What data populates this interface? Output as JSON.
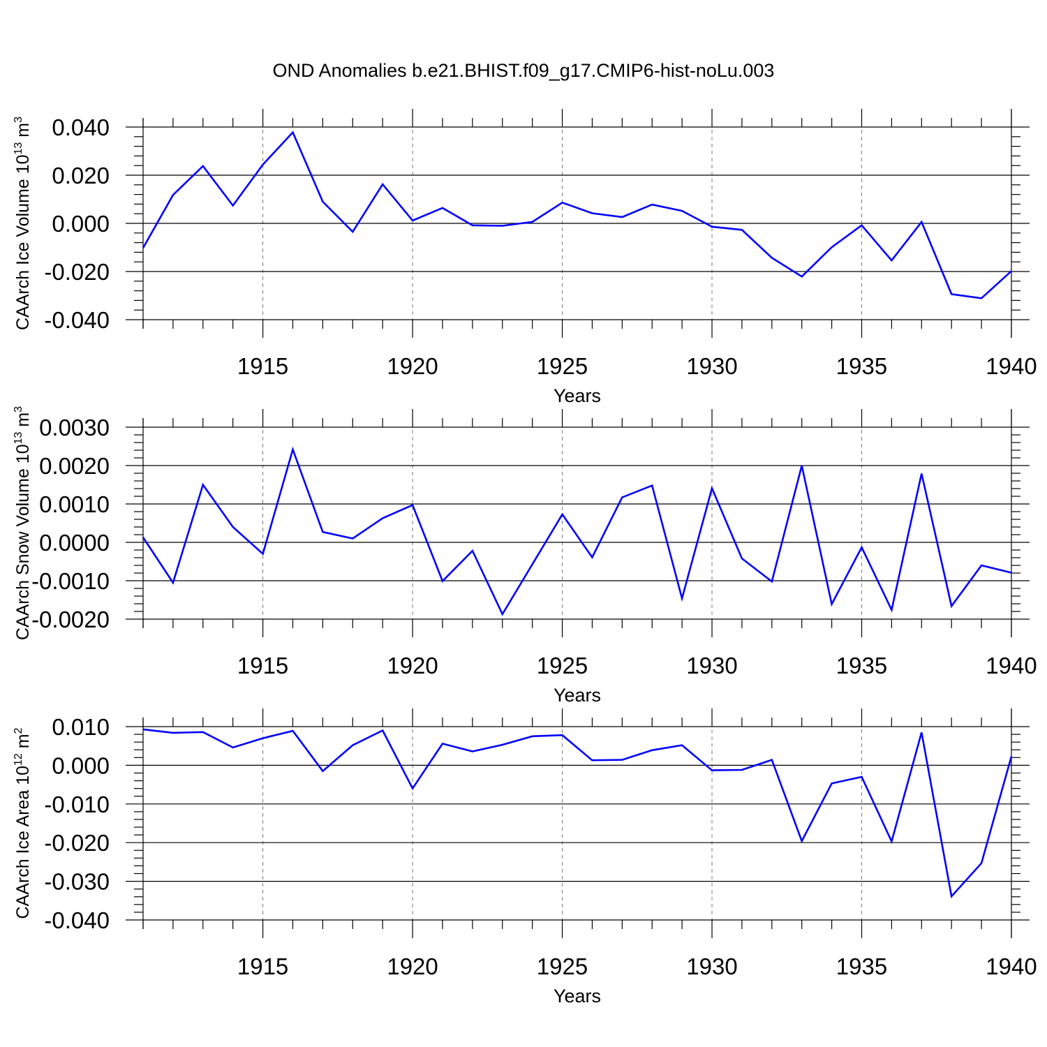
{
  "title": "OND Anomalies b.e21.BHIST.f09_g17.CMIP6-hist-noLu.003",
  "colors": {
    "line": "#0000ff",
    "axis": "#000000",
    "grid": "#777777"
  },
  "chart_data": [
    {
      "type": "line",
      "title": "",
      "xlabel": "Years",
      "ylabel_main": "CAArch Ice Volume 10",
      "ylabel_exp": "13",
      "ylabel_unit": " m",
      "ylabel_unit_exp": "3",
      "xlim": [
        1911,
        1940
      ],
      "ylim": [
        -0.04,
        0.04
      ],
      "xticks": [
        1915,
        1920,
        1925,
        1930,
        1935,
        1940
      ],
      "xtick_labels": [
        "1915",
        "1920",
        "1925",
        "1930",
        "1935",
        "1940"
      ],
      "yticks": [
        -0.04,
        -0.02,
        0.0,
        0.02,
        0.04
      ],
      "ytick_labels": [
        "-0.040",
        "-0.020",
        "0.000",
        "0.020",
        "0.040"
      ],
      "grid": "vertical dashed at labeled years",
      "x": [
        1911,
        1912,
        1913,
        1914,
        1915,
        1916,
        1917,
        1918,
        1919,
        1920,
        1921,
        1922,
        1923,
        1924,
        1925,
        1926,
        1927,
        1928,
        1929,
        1930,
        1931,
        1932,
        1933,
        1934,
        1935,
        1936,
        1937,
        1938,
        1939,
        1940
      ],
      "values": [
        -0.0102,
        0.0118,
        0.0238,
        0.0074,
        0.0244,
        0.0378,
        0.009,
        -0.0035,
        0.0162,
        0.0012,
        0.0064,
        -0.0008,
        -0.001,
        0.0006,
        0.0086,
        0.0042,
        0.0026,
        0.0078,
        0.0052,
        -0.0014,
        -0.0027,
        -0.0143,
        -0.0221,
        -0.0099,
        -0.0008,
        -0.0154,
        0.0006,
        -0.0294,
        -0.0311,
        -0.0198
      ]
    },
    {
      "type": "line",
      "title": "",
      "xlabel": "Years",
      "ylabel_main": "CAArch Snow Volume 10",
      "ylabel_exp": "13",
      "ylabel_unit": " m",
      "ylabel_unit_exp": "3",
      "xlim": [
        1911,
        1940
      ],
      "ylim": [
        -0.002,
        0.003
      ],
      "xticks": [
        1915,
        1920,
        1925,
        1930,
        1935,
        1940
      ],
      "xtick_labels": [
        "1915",
        "1920",
        "1925",
        "1930",
        "1935",
        "1940"
      ],
      "yticks": [
        -0.002,
        -0.001,
        0.0,
        0.001,
        0.002,
        0.003
      ],
      "ytick_labels": [
        "-0.0020",
        "-0.0010",
        "0.0000",
        "0.0010",
        "0.0020",
        "0.0030"
      ],
      "grid": "vertical dashed at labeled years",
      "x": [
        1911,
        1912,
        1913,
        1914,
        1915,
        1916,
        1917,
        1918,
        1919,
        1920,
        1921,
        1922,
        1923,
        1924,
        1925,
        1926,
        1927,
        1928,
        1929,
        1930,
        1931,
        1932,
        1933,
        1934,
        1935,
        1936,
        1937,
        1938,
        1939,
        1940
      ],
      "values": [
        0.00013,
        -0.00105,
        0.0015,
        0.0004,
        -0.0003,
        0.00242,
        0.00027,
        0.0001,
        0.00063,
        0.00097,
        -0.00101,
        -0.00022,
        -0.00187,
        -0.00057,
        0.00073,
        -0.00039,
        0.00117,
        0.00148,
        -0.00146,
        0.00141,
        -0.00042,
        -0.00102,
        0.002,
        -0.00161,
        -0.00013,
        -0.00176,
        0.00179,
        -0.00166,
        -0.0006,
        -0.00079
      ]
    },
    {
      "type": "line",
      "title": "",
      "xlabel": "Years",
      "ylabel_main": "CAArch Ice Area 10",
      "ylabel_exp": "12",
      "ylabel_unit": " m",
      "ylabel_unit_exp": "2",
      "xlim": [
        1911,
        1940
      ],
      "ylim": [
        -0.04,
        0.01
      ],
      "xticks": [
        1915,
        1920,
        1925,
        1930,
        1935,
        1940
      ],
      "xtick_labels": [
        "1915",
        "1920",
        "1925",
        "1930",
        "1935",
        "1940"
      ],
      "yticks": [
        -0.04,
        -0.03,
        -0.02,
        -0.01,
        0.0,
        0.01
      ],
      "ytick_labels": [
        "-0.040",
        "-0.030",
        "-0.020",
        "-0.010",
        "0.000",
        "0.010"
      ],
      "grid": "vertical dashed at labeled years",
      "x": [
        1911,
        1912,
        1913,
        1914,
        1915,
        1916,
        1917,
        1918,
        1919,
        1920,
        1921,
        1922,
        1923,
        1924,
        1925,
        1926,
        1927,
        1928,
        1929,
        1930,
        1931,
        1932,
        1933,
        1934,
        1935,
        1936,
        1937,
        1938,
        1939,
        1940
      ],
      "values": [
        0.0093,
        0.0084,
        0.0086,
        0.0046,
        0.007,
        0.0089,
        -0.0015,
        0.0052,
        0.009,
        -0.006,
        0.0056,
        0.0036,
        0.0053,
        0.0075,
        0.0078,
        0.0013,
        0.0014,
        0.0039,
        0.0052,
        -0.0013,
        -0.0012,
        0.0014,
        -0.0196,
        -0.0047,
        -0.003,
        -0.0197,
        0.0085,
        -0.0339,
        -0.0253,
        0.0023
      ]
    }
  ]
}
